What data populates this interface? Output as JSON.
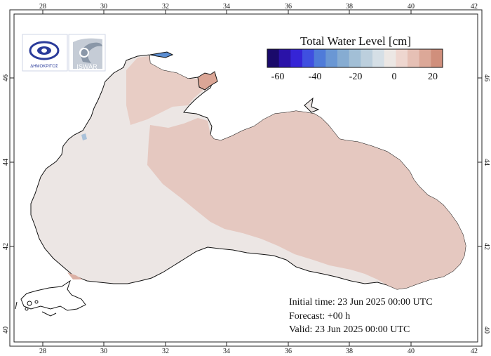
{
  "legend": {
    "title": "Total Water Level [cm]",
    "ticks": [
      "-60",
      "-40",
      "-20",
      "0",
      "20"
    ],
    "colors": [
      "#1a0a6b",
      "#2a12a8",
      "#3524d6",
      "#3f4fe0",
      "#4f7bd9",
      "#6a97d4",
      "#86acd2",
      "#a2bfd6",
      "#bccfdd",
      "#d5dfe6",
      "#ece7e4",
      "#eed6cf",
      "#e6c0b5",
      "#dca898",
      "#d08f7c"
    ]
  },
  "logos": {
    "left_text": "ΔΗΜΟΚΡΙΤΟΣ",
    "right_text": "ISWAR"
  },
  "info": {
    "initial": "Initial time: 23 Jun 2025 00:00 UTC",
    "forecast": "Forecast: +00 h",
    "valid": "Valid: 23 Jun 2025 00:00 UTC"
  },
  "axes": {
    "lon_labels": [
      "28",
      "30",
      "32",
      "34",
      "36",
      "38",
      "40",
      "42"
    ],
    "lat_labels": [
      "46",
      "44",
      "42",
      "40"
    ]
  },
  "colors": {
    "sea_light": "#ece6e4",
    "sea_warm": "#e5c8c0",
    "azov": "#dba696",
    "coast": "#111111"
  }
}
